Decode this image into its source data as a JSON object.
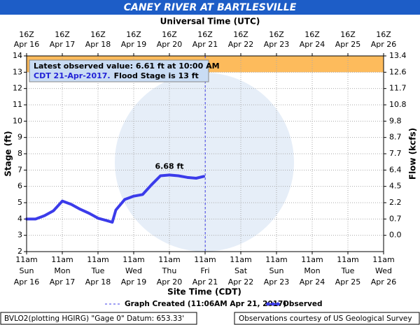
{
  "chart_data": {
    "type": "line",
    "title": "CANEY RIVER AT BARTLESVILLE",
    "top_axis_label": "Universal Time (UTC)",
    "x_label": "Site Time (CDT)",
    "y_label": "Stage (ft)",
    "y2_label": "Flow (kcfs)",
    "xlim": [
      0,
      10
    ],
    "ylim": [
      2,
      14
    ],
    "yticks": [
      2,
      3,
      4,
      5,
      6,
      7,
      8,
      9,
      10,
      11,
      12,
      13,
      14
    ],
    "y2ticks": [
      {
        "stage": 14,
        "value": 13.4
      },
      {
        "stage": 13,
        "value": 12.6
      },
      {
        "stage": 12,
        "value": 11.7
      },
      {
        "stage": 11,
        "value": 10.8
      },
      {
        "stage": 10,
        "value": 9.8
      },
      {
        "stage": 9,
        "value": 8.7
      },
      {
        "stage": 8,
        "value": 7.7
      },
      {
        "stage": 7,
        "value": 6.4
      },
      {
        "stage": 6,
        "value": 4.5
      },
      {
        "stage": 5,
        "value": 2.2
      },
      {
        "stage": 4,
        "value": 0.7
      },
      {
        "stage": 3,
        "value": 0,
        "label": "0.0"
      }
    ],
    "top_ticks": [
      {
        "value": 0,
        "time": "16Z",
        "date": "Apr 16"
      },
      {
        "value": 1,
        "time": "16Z",
        "date": "Apr 17"
      },
      {
        "value": 2,
        "time": "16Z",
        "date": "Apr 18"
      },
      {
        "value": 3,
        "time": "16Z",
        "date": "Apr 19"
      },
      {
        "value": 4,
        "time": "16Z",
        "date": "Apr 20"
      },
      {
        "value": 5,
        "time": "16Z",
        "date": "Apr 21"
      },
      {
        "value": 6,
        "time": "16Z",
        "date": "Apr 22"
      },
      {
        "value": 7,
        "time": "16Z",
        "date": "Apr 23"
      },
      {
        "value": 8,
        "time": "16Z",
        "date": "Apr 24"
      },
      {
        "value": 9,
        "time": "16Z",
        "date": "Apr 25"
      },
      {
        "value": 10,
        "time": "16Z",
        "date": "Apr 26"
      }
    ],
    "bottom_ticks": [
      {
        "value": 0,
        "time": "11am",
        "day": "Sun",
        "date": "Apr 16"
      },
      {
        "value": 1,
        "time": "11am",
        "day": "Mon",
        "date": "Apr 17"
      },
      {
        "value": 2,
        "time": "11am",
        "day": "Tue",
        "date": "Apr 18"
      },
      {
        "value": 3,
        "time": "11am",
        "day": "Wed",
        "date": "Apr 19"
      },
      {
        "value": 4,
        "time": "11am",
        "day": "Thu",
        "date": "Apr 20"
      },
      {
        "value": 5,
        "time": "11am",
        "day": "Fri",
        "date": "Apr 21"
      },
      {
        "value": 6,
        "time": "11am",
        "day": "Sat",
        "date": "Apr 22"
      },
      {
        "value": 7,
        "time": "11am",
        "day": "Sun",
        "date": "Apr 23"
      },
      {
        "value": 8,
        "time": "11am",
        "day": "Mon",
        "date": "Apr 24"
      },
      {
        "value": 9,
        "time": "11am",
        "day": "Tue",
        "date": "Apr 25"
      },
      {
        "value": 10,
        "time": "11am",
        "day": "Wed",
        "date": "Apr 26"
      }
    ],
    "grid": true,
    "flood_stage": {
      "value": 13,
      "color": "#fdbb5c"
    },
    "series": [
      {
        "name": "Observed",
        "color": "#3b3bea",
        "x": [
          0,
          0.25,
          0.5,
          0.75,
          1.0,
          1.25,
          1.5,
          1.75,
          2.0,
          2.25,
          2.4,
          2.5,
          2.75,
          3.0,
          3.25,
          3.5,
          3.75,
          4.0,
          4.25,
          4.5,
          4.75,
          4.96
        ],
        "values": [
          4.0,
          4.0,
          4.2,
          4.5,
          5.1,
          4.9,
          4.6,
          4.35,
          4.05,
          3.9,
          3.8,
          4.55,
          5.2,
          5.4,
          5.5,
          6.1,
          6.65,
          6.7,
          6.65,
          6.55,
          6.5,
          6.61
        ]
      }
    ],
    "annotation": "6.68 ft",
    "info_box": {
      "line1": "Latest observed value: 6.61 ft at 10:00 AM",
      "line2": "CDT 21-Apr-2017.",
      "line2b": "Flood Stage is 13 ft"
    },
    "created": {
      "label": "Graph Created (11:06AM Apr 21, 2017)",
      "x": 5.004
    },
    "footer_left": "BVLO2(plotting HGIRG) \"Gage 0\" Datum: 653.33'",
    "footer_right": "Observations courtesy of US Geological Survey"
  }
}
